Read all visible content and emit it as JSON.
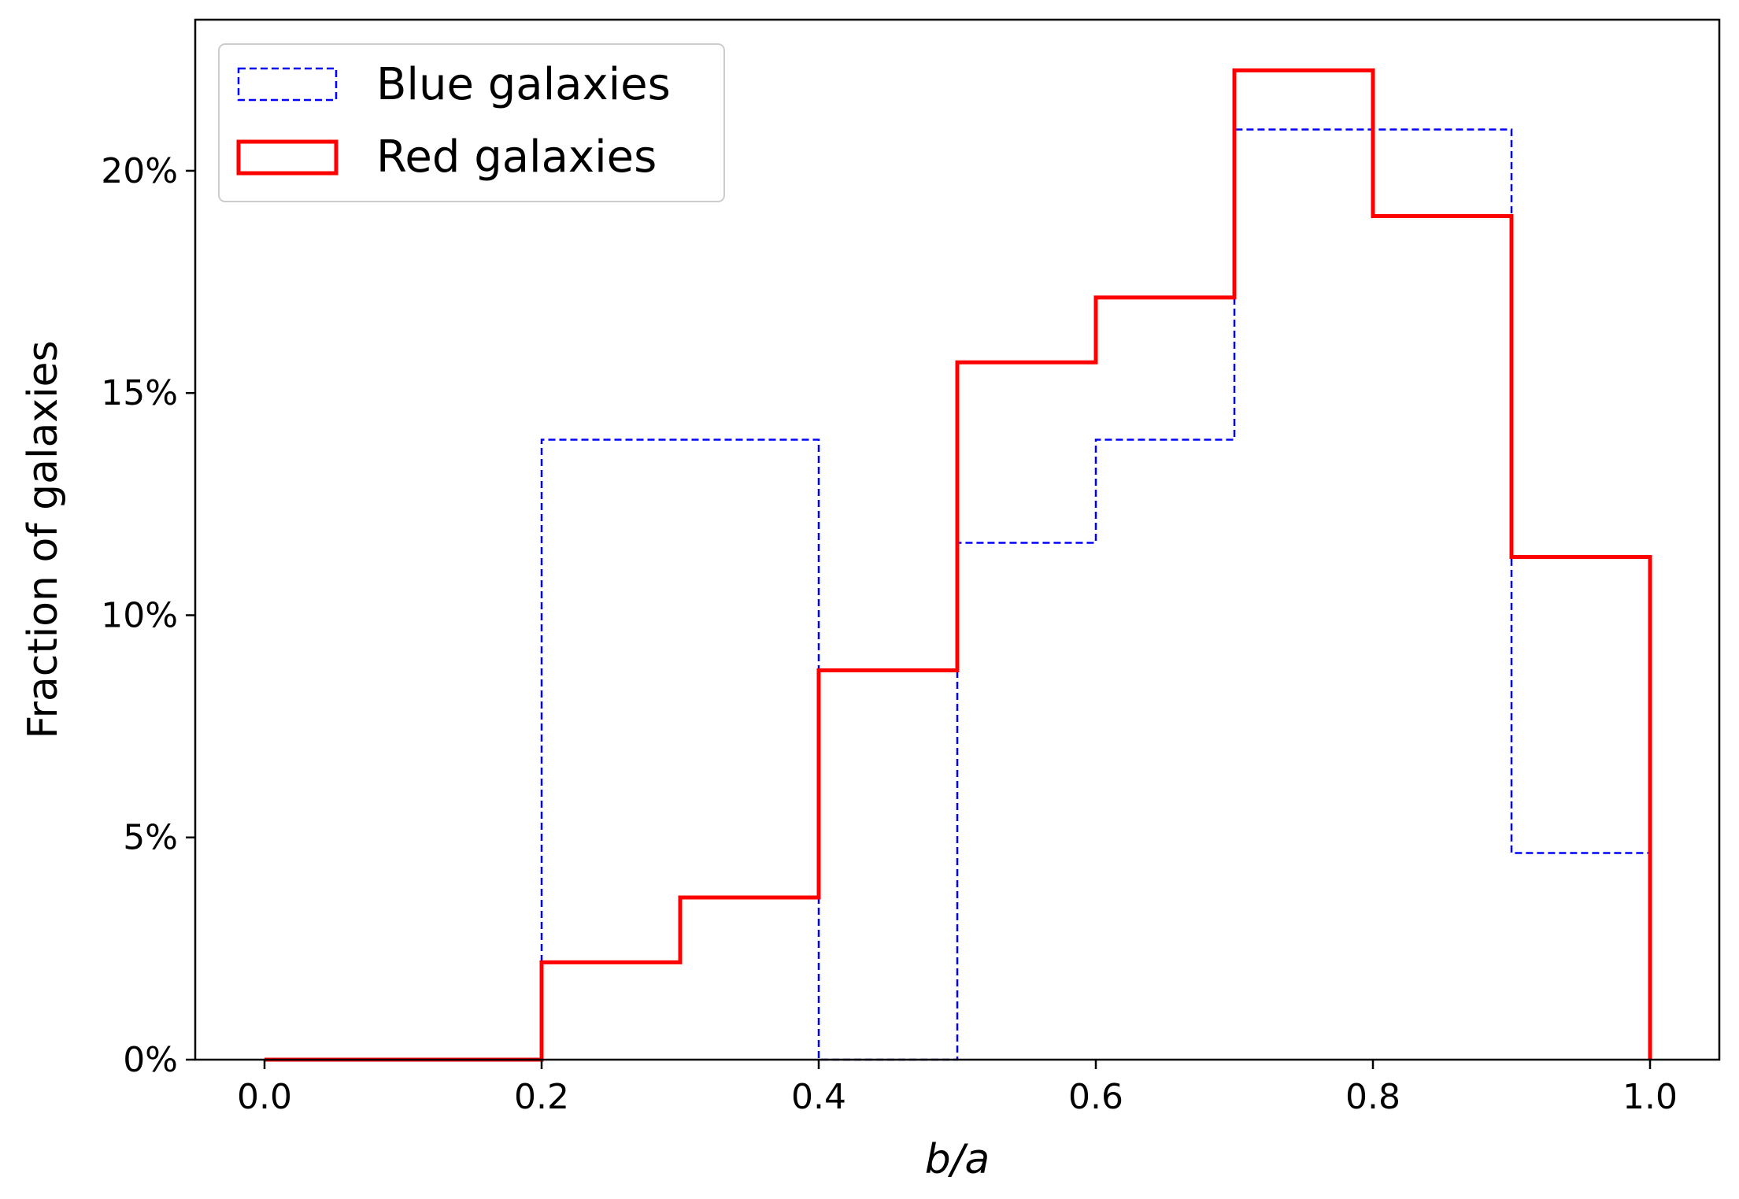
{
  "chart_data": {
    "type": "histogram",
    "title": "",
    "xlabel": "b/a",
    "ylabel": "Fraction of galaxies",
    "xlim": [
      -0.05,
      1.05
    ],
    "ylim": [
      0,
      23.4
    ],
    "x_ticks": [
      {
        "value": 0.0,
        "label": "0.0"
      },
      {
        "value": 0.2,
        "label": "0.2"
      },
      {
        "value": 0.4,
        "label": "0.4"
      },
      {
        "value": 0.6,
        "label": "0.6"
      },
      {
        "value": 0.8,
        "label": "0.8"
      },
      {
        "value": 1.0,
        "label": "1.0"
      }
    ],
    "y_ticks": [
      {
        "value": 0,
        "label": "0%"
      },
      {
        "value": 5,
        "label": "5%"
      },
      {
        "value": 10,
        "label": "10%"
      },
      {
        "value": 15,
        "label": "15%"
      },
      {
        "value": 20,
        "label": "20%"
      }
    ],
    "grid": false,
    "legend": "upper-left",
    "bin_edges": [
      0.0,
      0.1,
      0.2,
      0.3,
      0.4,
      0.5,
      0.6,
      0.7,
      0.8,
      0.9,
      1.0
    ],
    "series": [
      {
        "name": "Blue galaxies",
        "color": "#0000ff",
        "style": "dashed",
        "values": [
          0,
          0,
          13.95,
          13.95,
          0,
          11.63,
          13.95,
          20.93,
          20.93,
          4.65
        ]
      },
      {
        "name": "Red galaxies",
        "color": "#ff0000",
        "style": "solid",
        "values": [
          0,
          0,
          2.19,
          3.65,
          8.76,
          15.69,
          17.15,
          22.26,
          18.98,
          11.31
        ]
      }
    ]
  }
}
